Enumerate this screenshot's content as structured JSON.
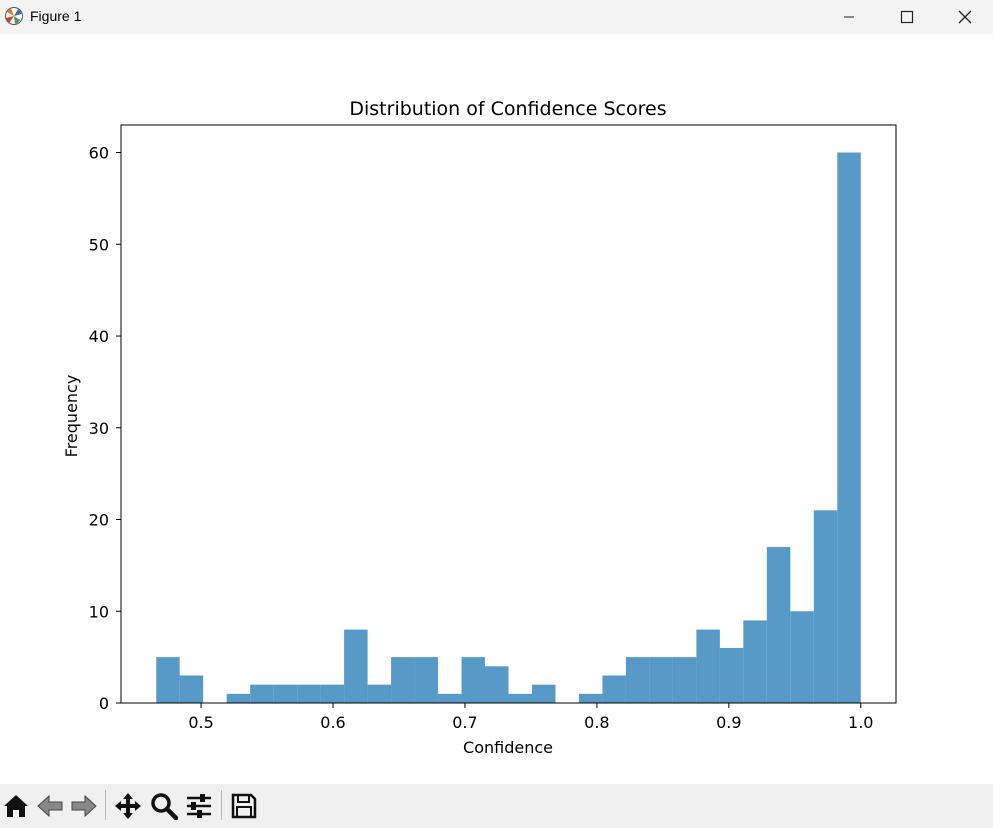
{
  "window": {
    "title": "Figure 1"
  },
  "toolbar": {
    "items": [
      "home-icon",
      "back-icon",
      "forward-icon",
      "pan-icon",
      "zoom-icon",
      "configure-icon",
      "save-icon"
    ]
  },
  "chart_data": {
    "type": "bar",
    "title": "Distribution of Confidence Scores",
    "xlabel": "Confidence",
    "ylabel": "Frequency",
    "bin_edges": [
      0.466,
      0.4838,
      0.5016,
      0.5194,
      0.5372,
      0.555,
      0.5728,
      0.5906,
      0.6084,
      0.6262,
      0.644,
      0.6618,
      0.6796,
      0.6974,
      0.7152,
      0.733,
      0.7508,
      0.7686,
      0.7864,
      0.8042,
      0.822,
      0.8398,
      0.8576,
      0.8754,
      0.8932,
      0.911,
      0.9288,
      0.9466,
      0.9644,
      0.9822,
      1.0
    ],
    "values": [
      5,
      3,
      0,
      1,
      2,
      2,
      2,
      2,
      8,
      2,
      5,
      5,
      1,
      5,
      4,
      1,
      2,
      0,
      1,
      3,
      5,
      5,
      5,
      8,
      6,
      9,
      17,
      10,
      21,
      60
    ],
    "xlim": [
      0.4393,
      1.0267
    ],
    "ylim": [
      0,
      63
    ],
    "xticks": [
      0.5,
      0.6,
      0.7,
      0.8,
      0.9,
      1.0
    ],
    "xtick_labels": [
      "0.5",
      "0.6",
      "0.7",
      "0.8",
      "0.9",
      "1.0"
    ],
    "yticks": [
      0,
      10,
      20,
      30,
      40,
      50,
      60
    ],
    "ytick_labels": [
      "0",
      "10",
      "20",
      "30",
      "40",
      "50",
      "60"
    ],
    "bar_color": "#5799c7",
    "grid": false
  }
}
